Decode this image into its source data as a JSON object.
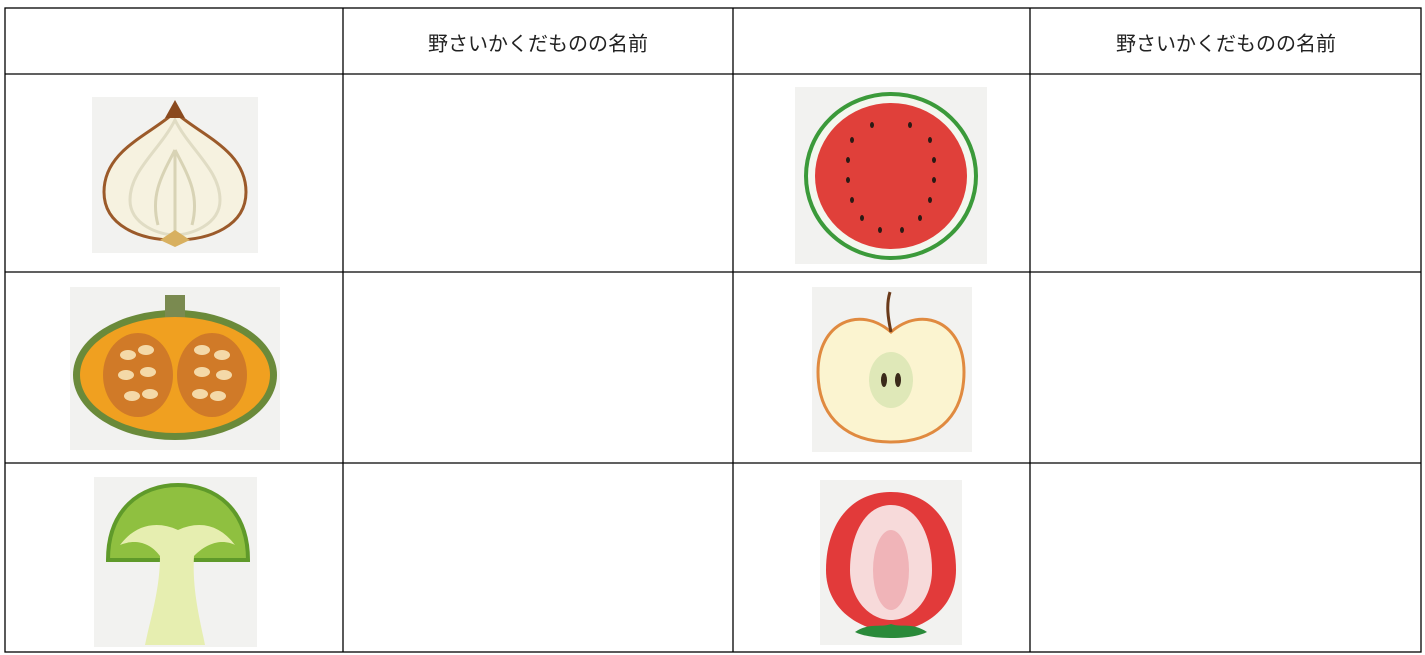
{
  "table": {
    "header": [
      "野さいかくだものの名前",
      "野さいかくだものの名前"
    ]
  }
}
